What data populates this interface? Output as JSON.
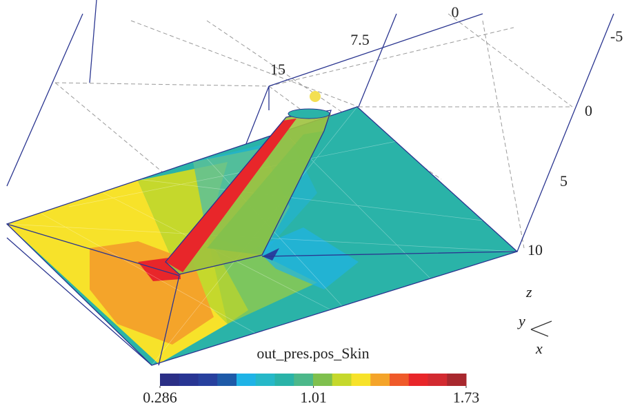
{
  "axes": {
    "top_ticks": [
      "15",
      "7.5",
      "0"
    ],
    "right_ticks": [
      "-5",
      "0",
      "5",
      "10"
    ],
    "triad": [
      "z",
      "y",
      "x"
    ]
  },
  "colorbar": {
    "title": "out_pres.pos_Skin",
    "colors": [
      "#2b2f86",
      "#283593",
      "#27409e",
      "#1e5aa8",
      "#1fb3e6",
      "#26b8c8",
      "#2ab3a8",
      "#4cb88a",
      "#7fc04e",
      "#c5d82c",
      "#f7e22a",
      "#f4a42a",
      "#ef5a2a",
      "#e8262a",
      "#d22a30",
      "#a8282e"
    ],
    "range": [
      0.286,
      1.73
    ],
    "ticks": [
      0.286,
      1.01,
      1.73
    ]
  }
}
